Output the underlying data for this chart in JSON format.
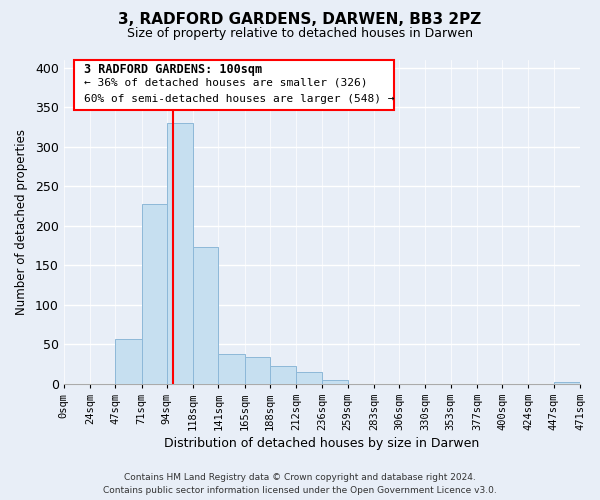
{
  "title": "3, RADFORD GARDENS, DARWEN, BB3 2PZ",
  "subtitle": "Size of property relative to detached houses in Darwen",
  "xlabel": "Distribution of detached houses by size in Darwen",
  "ylabel": "Number of detached properties",
  "bin_edges": [
    0,
    24,
    47,
    71,
    94,
    118,
    141,
    165,
    188,
    212,
    236,
    259,
    283,
    306,
    330,
    353,
    377,
    400,
    424,
    447,
    471
  ],
  "bar_heights": [
    0,
    0,
    57,
    228,
    330,
    173,
    38,
    33,
    22,
    14,
    5,
    0,
    0,
    0,
    0,
    0,
    0,
    0,
    0,
    2
  ],
  "bar_color": "#c6dff0",
  "bar_edge_color": "#8db8d8",
  "property_line_x": 100,
  "property_line_color": "red",
  "ylim": [
    0,
    410
  ],
  "xlim": [
    0,
    471
  ],
  "annotation_title": "3 RADFORD GARDENS: 100sqm",
  "annotation_line1": "← 36% of detached houses are smaller (326)",
  "annotation_line2": "60% of semi-detached houses are larger (548) →",
  "footer_line1": "Contains HM Land Registry data © Crown copyright and database right 2024.",
  "footer_line2": "Contains public sector information licensed under the Open Government Licence v3.0.",
  "tick_labels": [
    "0sqm",
    "24sqm",
    "47sqm",
    "71sqm",
    "94sqm",
    "118sqm",
    "141sqm",
    "165sqm",
    "188sqm",
    "212sqm",
    "236sqm",
    "259sqm",
    "283sqm",
    "306sqm",
    "330sqm",
    "353sqm",
    "377sqm",
    "400sqm",
    "424sqm",
    "447sqm",
    "471sqm"
  ],
  "tick_positions": [
    0,
    24,
    47,
    71,
    94,
    118,
    141,
    165,
    188,
    212,
    236,
    259,
    283,
    306,
    330,
    353,
    377,
    400,
    424,
    447,
    471
  ],
  "yticks": [
    0,
    50,
    100,
    150,
    200,
    250,
    300,
    350,
    400
  ],
  "background_color": "#e8eef7",
  "grid_color": "#ffffff"
}
